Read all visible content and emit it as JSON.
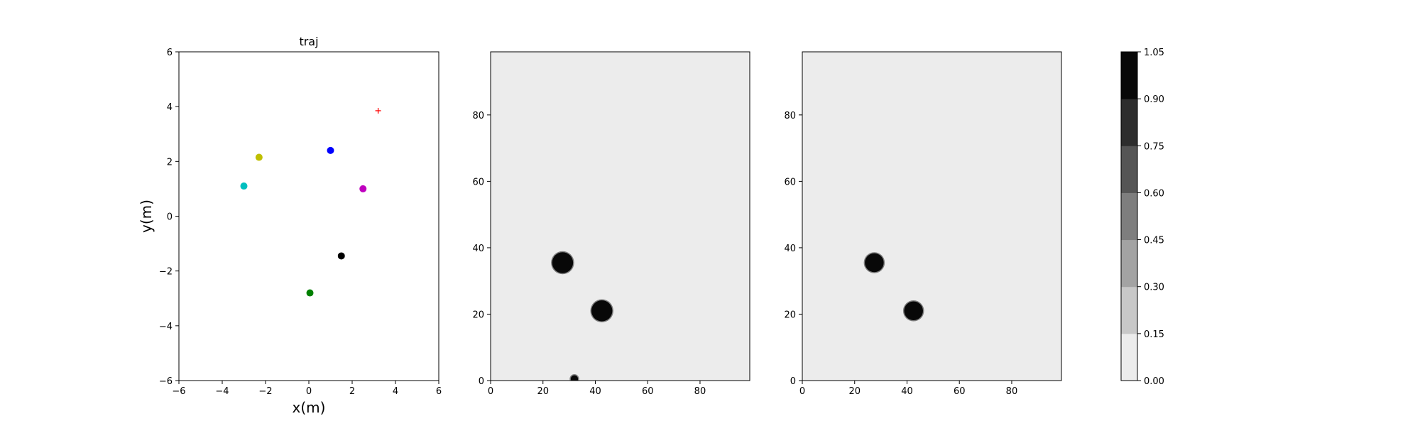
{
  "chart_data": [
    {
      "type": "scatter",
      "title": "traj",
      "xlabel": "x(m)",
      "ylabel": "y(m)",
      "xlim": [
        -6,
        6
      ],
      "ylim": [
        -6,
        6
      ],
      "xticks": [
        -6,
        -4,
        -2,
        0,
        2,
        4,
        6
      ],
      "yticks": [
        -6,
        -4,
        -2,
        0,
        2,
        4,
        6
      ],
      "grid": false,
      "points": [
        {
          "x": 1.0,
          "y": 2.4,
          "color": "#0000ff",
          "marker": "circle"
        },
        {
          "x": -2.3,
          "y": 2.15,
          "color": "#bfbf00",
          "marker": "circle"
        },
        {
          "x": -3.0,
          "y": 1.1,
          "color": "#00bfbf",
          "marker": "circle"
        },
        {
          "x": 2.5,
          "y": 1.0,
          "color": "#bf00bf",
          "marker": "circle"
        },
        {
          "x": 1.5,
          "y": -1.45,
          "color": "#000000",
          "marker": "circle"
        },
        {
          "x": 0.05,
          "y": -2.8,
          "color": "#008000",
          "marker": "circle"
        },
        {
          "x": 3.2,
          "y": 3.85,
          "color": "#ff0000",
          "marker": "plus"
        }
      ]
    },
    {
      "type": "heatmap",
      "title": "",
      "xlim": [
        0,
        99
      ],
      "ylim": [
        0,
        99
      ],
      "xticks": [
        0,
        20,
        40,
        60,
        80
      ],
      "yticks": [
        0,
        20,
        40,
        60,
        80
      ],
      "background_value": 0.05,
      "blobs": [
        {
          "cx": 27.5,
          "cy": 35.5,
          "r": 4.0,
          "value": 1.0
        },
        {
          "cx": 42.5,
          "cy": 21.0,
          "r": 4.0,
          "value": 1.0
        },
        {
          "cx": 32.0,
          "cy": 0.5,
          "r": 1.4,
          "value": 1.0
        }
      ]
    },
    {
      "type": "heatmap",
      "title": "",
      "xlim": [
        0,
        99
      ],
      "ylim": [
        0,
        99
      ],
      "xticks": [
        0,
        20,
        40,
        60,
        80
      ],
      "yticks": [
        0,
        20,
        40,
        60,
        80
      ],
      "background_value": 0.05,
      "blobs": [
        {
          "cx": 27.5,
          "cy": 35.5,
          "r": 3.6,
          "value": 1.0
        },
        {
          "cx": 42.5,
          "cy": 21.0,
          "r": 3.6,
          "value": 1.0
        }
      ]
    }
  ],
  "colorbar": {
    "ticks": [
      "0.00",
      "0.15",
      "0.30",
      "0.45",
      "0.60",
      "0.75",
      "0.90",
      "1.05"
    ],
    "colors": [
      "#ececec",
      "#c8c8c8",
      "#a3a3a3",
      "#7e7e7e",
      "#555555",
      "#2d2d2d",
      "#080808"
    ]
  }
}
